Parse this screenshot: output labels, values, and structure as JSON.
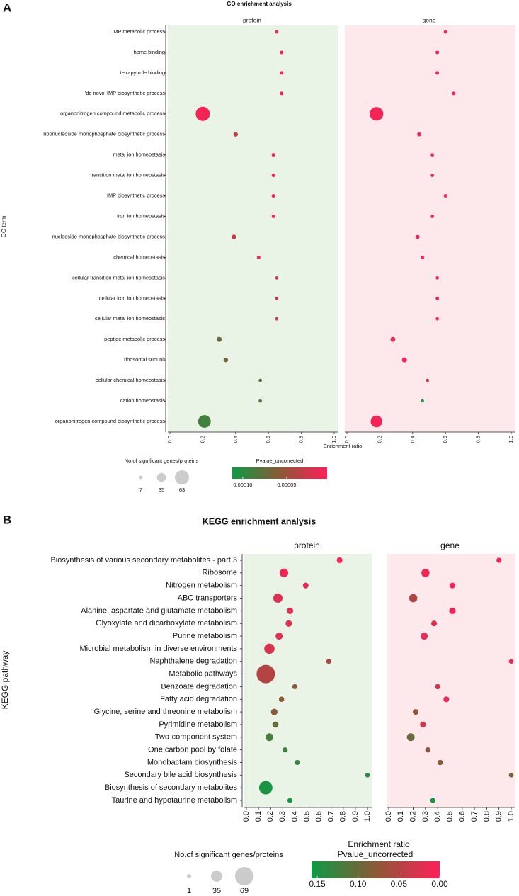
{
  "chart_data": [
    {
      "type": "bubble",
      "panel_label": "A",
      "title": "GO enrichment analysis",
      "ylabel": "GO term",
      "xlabel": "Enrichment ratio",
      "categories": [
        "IMP metabolic process",
        "heme binding",
        "tetrapyrrole binding",
        "'de novo' IMP biosynthetic process",
        "organonitrogen compound metabolic process",
        "ribonucleoside monophosphate biosynthetic process",
        "metal ion homeostasis",
        "transition metal ion homeostasis",
        "IMP biosynthetic process",
        "iron ion homeostasis",
        "nucleoside monophosphate biosynthetic process",
        "chemical homeostasis",
        "cellular transition metal ion homeostasis",
        "cellular iron ion homeostasis",
        "cellular metal ion homeostasis",
        "peptide metabolic process",
        "ribosomal subunit",
        "cellular chemical homeostasis",
        "cation homeostasis",
        "organonitrogen compound biosynthetic process"
      ],
      "facets": [
        {
          "name": "protein",
          "color": "#e9f3e6",
          "x": [
            0.65,
            0.68,
            0.68,
            0.68,
            0.2,
            0.4,
            0.63,
            0.63,
            0.63,
            0.63,
            0.39,
            0.54,
            0.65,
            0.65,
            0.65,
            0.3,
            0.34,
            0.55,
            0.55,
            0.21
          ],
          "size": [
            7,
            7,
            7,
            7,
            63,
            12,
            7,
            7,
            7,
            7,
            12,
            7,
            6,
            6,
            6,
            15,
            12,
            6,
            6,
            55
          ],
          "pvalue": [
            1e-05,
            1e-05,
            1e-05,
            1e-05,
            1e-05,
            3e-05,
            1e-05,
            1e-05,
            1e-05,
            1e-05,
            3e-05,
            2e-05,
            2e-05,
            2e-05,
            2e-05,
            7e-05,
            7e-05,
            8e-05,
            8e-05,
            9e-05
          ]
        },
        {
          "name": "gene",
          "color": "#fde9eb",
          "x": [
            0.6,
            0.55,
            0.55,
            0.65,
            0.18,
            0.44,
            0.52,
            0.52,
            0.6,
            0.52,
            0.43,
            0.46,
            0.55,
            0.55,
            0.55,
            0.28,
            0.35,
            0.49,
            0.46,
            0.18
          ],
          "size": [
            7,
            7,
            7,
            7,
            60,
            10,
            6,
            6,
            7,
            6,
            10,
            7,
            6,
            6,
            6,
            14,
            14,
            6,
            5,
            50
          ],
          "pvalue": [
            1e-05,
            1e-05,
            1e-05,
            1e-05,
            1e-05,
            1e-05,
            1e-05,
            1e-05,
            1e-05,
            1e-05,
            1e-05,
            1e-05,
            1e-05,
            1e-05,
            1e-05,
            2e-05,
            1e-05,
            3e-05,
            0.00011,
            1e-05
          ]
        }
      ],
      "xlim": [
        0,
        1
      ],
      "xticks": [
        {
          "value": 0,
          "label": "0.0"
        },
        {
          "value": 0.2,
          "label": "0.2"
        },
        {
          "value": 0.4,
          "label": "0.4"
        },
        {
          "value": 0.6,
          "label": "0.6"
        },
        {
          "value": 0.8,
          "label": "0.8"
        },
        {
          "value": 1,
          "label": "1.0"
        }
      ],
      "size_legend": {
        "title": "No.of significant genes/proteins",
        "values": [
          7,
          35,
          63
        ],
        "color": "#cccccc"
      },
      "color_legend": {
        "title": "Pvalue_uncorrected",
        "clim": [
          0.000112,
          4e-06
        ],
        "colors": [
          "#0e9a44",
          "#8a5936",
          "#ff1f5a"
        ],
        "ticks": [
          {
            "value": 0.0001,
            "label": "0.00010"
          },
          {
            "value": 5e-05,
            "label": "0.00005"
          }
        ]
      }
    },
    {
      "type": "bubble",
      "panel_label": "B",
      "title": "KEGG enrichment analysis",
      "ylabel": "KEGG pathway",
      "xlabel": "Enrichment ratio",
      "categories": [
        "Biosynthesis of various secondary metabolites - part 3",
        "Ribosome",
        "Nitrogen metabolism",
        "ABC transporters",
        "Alanine, aspartate and glutamate metabolism",
        "Glyoxylate and dicarboxylate metabolism",
        "Purine metabolism",
        "Microbial metabolism in diverse environments",
        "Naphthalene degradation",
        "Metabolic pathways",
        "Benzoate degradation",
        "Fatty acid degradation",
        "Glycine, serine and threonine metabolism",
        "Pyrimidine metabolism",
        "Two-component system",
        "One carbon pool by folate",
        "Monobactam biosynthesis",
        "Secondary bile acid biosynthesis",
        "Biosynthesis of secondary metabolites",
        "Taurine and hypotaurine metabolism"
      ],
      "facets": [
        {
          "name": "protein",
          "color": "#e9f3e6",
          "x": [
            0.77,
            0.31,
            0.49,
            0.26,
            0.36,
            0.35,
            0.27,
            0.19,
            0.68,
            0.16,
            0.4,
            0.29,
            0.23,
            0.24,
            0.19,
            0.32,
            0.42,
            1.0,
            0.16,
            0.36
          ],
          "size": [
            8,
            22,
            8,
            25,
            12,
            12,
            15,
            30,
            5,
            69,
            5,
            6,
            12,
            10,
            18,
            5,
            5,
            3,
            45,
            5
          ],
          "pvalue": [
            0.01,
            0.01,
            0.02,
            0.02,
            0.02,
            0.02,
            0.02,
            0.03,
            0.06,
            0.05,
            0.08,
            0.08,
            0.08,
            0.1,
            0.12,
            0.13,
            0.13,
            0.14,
            0.15,
            0.15
          ]
        },
        {
          "name": "gene",
          "color": "#fde9eb",
          "x": [
            0.9,
            0.3,
            0.52,
            0.2,
            0.52,
            0.37,
            0.29,
            null,
            1.0,
            null,
            0.4,
            0.47,
            0.22,
            0.28,
            0.18,
            0.32,
            0.42,
            1.0,
            null,
            0.36
          ],
          "size": [
            5,
            20,
            8,
            20,
            12,
            8,
            15,
            null,
            3,
            null,
            6,
            8,
            8,
            9,
            18,
            6,
            6,
            3,
            null,
            5
          ],
          "pvalue": [
            0.01,
            0.01,
            0.01,
            0.05,
            0.01,
            0.02,
            0.01,
            null,
            0.01,
            null,
            0.03,
            0.01,
            0.07,
            0.03,
            0.1,
            0.07,
            0.08,
            0.09,
            null,
            0.15
          ]
        }
      ],
      "xlim": [
        0,
        1
      ],
      "xticks": [
        {
          "value": 0,
          "label": "0.0"
        },
        {
          "value": 0.1,
          "label": "0.1"
        },
        {
          "value": 0.2,
          "label": "0.2"
        },
        {
          "value": 0.3,
          "label": "0.3"
        },
        {
          "value": 0.4,
          "label": "0.4"
        },
        {
          "value": 0.5,
          "label": "0.5"
        },
        {
          "value": 0.6,
          "label": "0.6"
        },
        {
          "value": 0.7,
          "label": "0.7"
        },
        {
          "value": 0.8,
          "label": "0.8"
        },
        {
          "value": 0.9,
          "label": "0.9"
        },
        {
          "value": 1,
          "label": "1.0"
        }
      ],
      "size_legend": {
        "title": "No.of significant genes/proteins",
        "values": [
          1,
          35,
          69
        ],
        "color": "#cccccc"
      },
      "color_legend": {
        "title": "Pvalue_uncorrected",
        "clim": [
          0.157,
          0
        ],
        "colors": [
          "#0e9a44",
          "#8a5936",
          "#ff1f5a"
        ],
        "ticks": [
          {
            "value": 0.15,
            "label": "0.15"
          },
          {
            "value": 0.1,
            "label": "0.10"
          },
          {
            "value": 0.05,
            "label": "0.05"
          },
          {
            "value": 0,
            "label": "0.00"
          }
        ]
      }
    }
  ]
}
